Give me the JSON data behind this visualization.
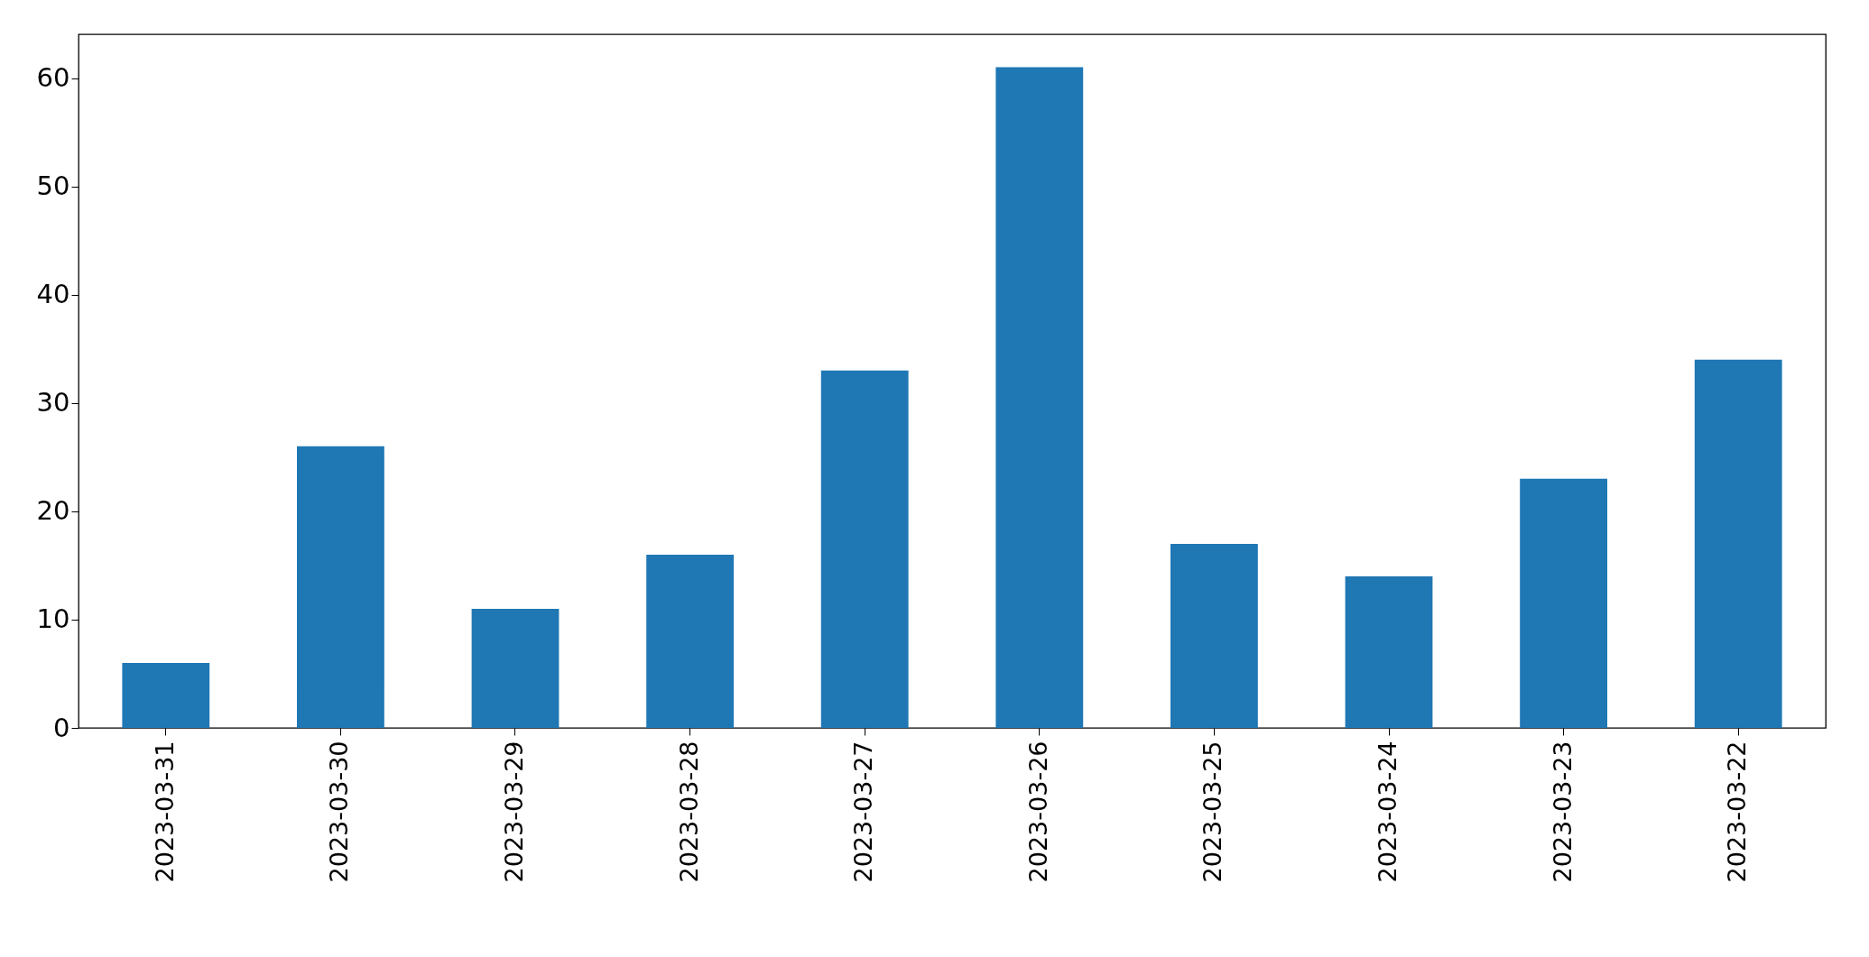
{
  "chart_data": {
    "type": "bar",
    "categories": [
      "2023-03-31",
      "2023-03-30",
      "2023-03-29",
      "2023-03-28",
      "2023-03-27",
      "2023-03-26",
      "2023-03-25",
      "2023-03-24",
      "2023-03-23",
      "2023-03-22"
    ],
    "values": [
      6,
      26,
      11,
      16,
      33,
      61,
      17,
      14,
      23,
      34
    ],
    "color": "#1f77b4",
    "ylim": [
      0,
      64.05
    ],
    "yticks": [
      0,
      10,
      20,
      30,
      40,
      50,
      60
    ],
    "grid": false
  }
}
